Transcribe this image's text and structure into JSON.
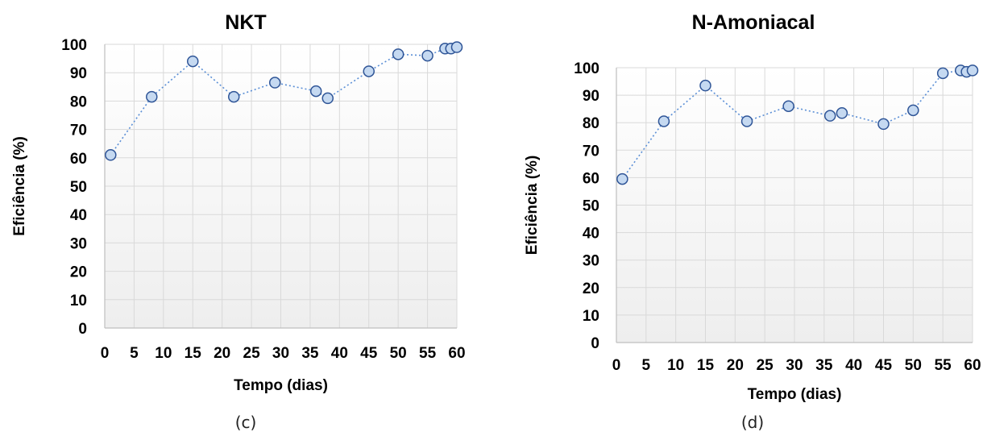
{
  "colors": {
    "marker_fill": "#c5d9f1",
    "marker_stroke": "#2f5597",
    "line": "#5b8fd6",
    "grid": "#d9d9d9"
  },
  "chart_data": [
    {
      "type": "line",
      "title": "NKT",
      "xlabel": "Tempo (dias)",
      "ylabel": "Eficiência (%)",
      "caption": "(c)",
      "xlim": [
        0,
        60
      ],
      "ylim": [
        0,
        100
      ],
      "x_ticks": [
        "0",
        "5",
        "10",
        "15",
        "20",
        "25",
        "30",
        "35",
        "40",
        "45",
        "50",
        "55",
        "60"
      ],
      "y_ticks": [
        "0",
        "10",
        "20",
        "30",
        "40",
        "50",
        "60",
        "70",
        "80",
        "90",
        "100"
      ],
      "grid": true,
      "legend": "none",
      "series": [
        {
          "x": [
            1,
            8,
            15,
            22,
            29,
            36,
            38,
            45,
            50,
            55,
            58,
            59,
            60
          ],
          "y": [
            61,
            81.5,
            94,
            81.5,
            86.5,
            83.5,
            81,
            90.5,
            96.5,
            96,
            98.5,
            98.5,
            99
          ]
        }
      ]
    },
    {
      "type": "line",
      "title": "N-Amoniacal",
      "xlabel": "Tempo (dias)",
      "ylabel": "Eficiência (%)",
      "caption": "(d)",
      "xlim": [
        0,
        60
      ],
      "ylim": [
        0,
        100
      ],
      "x_ticks": [
        "0",
        "5",
        "10",
        "15",
        "20",
        "25",
        "30",
        "35",
        "40",
        "45",
        "50",
        "55",
        "60"
      ],
      "y_ticks": [
        "0",
        "10",
        "20",
        "30",
        "40",
        "50",
        "60",
        "70",
        "80",
        "90",
        "100"
      ],
      "grid": true,
      "legend": "none",
      "series": [
        {
          "x": [
            1,
            8,
            15,
            22,
            29,
            36,
            38,
            45,
            50,
            55,
            58,
            59,
            60
          ],
          "y": [
            59.5,
            80.5,
            93.5,
            80.5,
            86,
            82.5,
            83.5,
            79.5,
            84.5,
            98,
            99,
            98.5,
            99
          ]
        }
      ]
    }
  ]
}
